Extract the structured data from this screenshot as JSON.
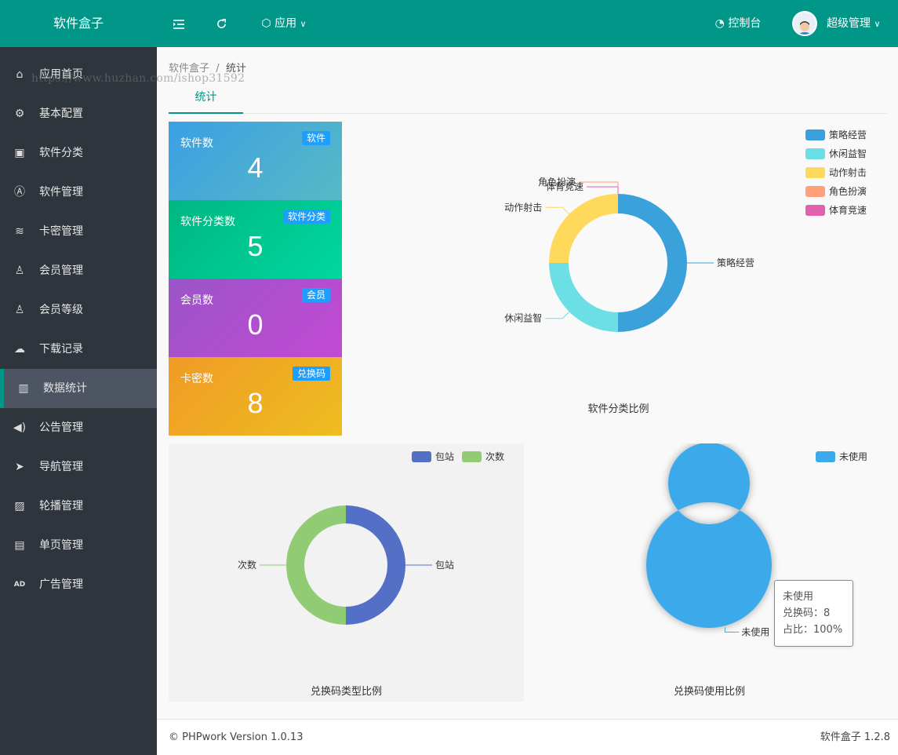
{
  "header": {
    "brand": "软件盒子",
    "apps_label": "应用",
    "console_label": "控制台",
    "user_name": "超级管理"
  },
  "sidebar": {
    "items": [
      {
        "label": "应用首页",
        "icon": "home-icon"
      },
      {
        "label": "基本配置",
        "icon": "gear-icon"
      },
      {
        "label": "软件分类",
        "icon": "category-icon"
      },
      {
        "label": "软件管理",
        "icon": "app-store-icon"
      },
      {
        "label": "卡密管理",
        "icon": "layers-icon"
      },
      {
        "label": "会员管理",
        "icon": "user-icon"
      },
      {
        "label": "会员等级",
        "icon": "user-level-icon"
      },
      {
        "label": "下载记录",
        "icon": "cloud-download-icon"
      },
      {
        "label": "数据统计",
        "icon": "bar-chart-icon",
        "active": true
      },
      {
        "label": "公告管理",
        "icon": "speaker-icon"
      },
      {
        "label": "导航管理",
        "icon": "navigation-icon"
      },
      {
        "label": "轮播管理",
        "icon": "image-icon"
      },
      {
        "label": "单页管理",
        "icon": "file-icon"
      },
      {
        "label": "广告管理",
        "icon": "ad-icon"
      }
    ]
  },
  "watermark": "https://www.huzhan.com/ishop31592",
  "breadcrumb": {
    "root": "软件盒子",
    "separator": "/",
    "current": "统计"
  },
  "tabs": [
    {
      "label": "统计"
    }
  ],
  "cards": [
    {
      "title": "软件数",
      "badge": "软件",
      "value": "4"
    },
    {
      "title": "软件分类数",
      "badge": "软件分类",
      "value": "5"
    },
    {
      "title": "会员数",
      "badge": "会员",
      "value": "0"
    },
    {
      "title": "卡密数",
      "badge": "兑换码",
      "value": "8"
    }
  ],
  "chart_data": [
    {
      "type": "pie",
      "title": "软件分类比例",
      "legend_position": "top-right",
      "categories": [
        "策略经营",
        "休闲益智",
        "动作射击",
        "角色扮演",
        "体育竞速"
      ],
      "values": [
        2,
        1,
        1,
        0,
        0
      ],
      "colors": [
        "#3ba1da",
        "#6bdfe4",
        "#ffd95c",
        "#ffa07a",
        "#e062ae"
      ]
    },
    {
      "type": "pie",
      "title": "兑换码类型比例",
      "legend_position": "top-right",
      "categories": [
        "包站",
        "次数"
      ],
      "values": [
        1,
        1
      ],
      "colors": [
        "#5470c6",
        "#91cc75"
      ]
    },
    {
      "type": "pie",
      "title": "兑换码使用比例",
      "legend_position": "top-right",
      "categories": [
        "未使用"
      ],
      "values": [
        8
      ],
      "colors": [
        "#3ba9ea"
      ],
      "tooltip": {
        "name": "未使用",
        "line1": "兑换码：8",
        "line2": "占比：100%"
      }
    }
  ],
  "footer": {
    "left": "© PHPwork Version 1.0.13",
    "right": "软件盒子 1.2.8"
  }
}
